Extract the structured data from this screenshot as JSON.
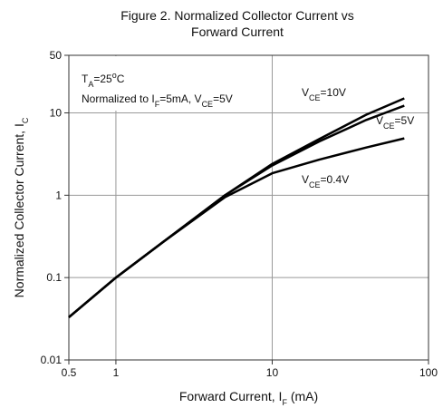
{
  "chart_data": {
    "type": "line",
    "title": [
      "Figure 2. Normalized Collector Current vs",
      "Forward Current"
    ],
    "x_label": [
      "Forward Current, I",
      "F",
      " (mA)"
    ],
    "y_label": [
      "Normalized Collector Current, I",
      "C"
    ],
    "log_x": true,
    "log_y": true,
    "grid": true,
    "xlim": [
      0.5,
      100
    ],
    "xticks": [
      0.5,
      1,
      10,
      100
    ],
    "ylim": [
      0.01,
      50
    ],
    "yticks": [
      0.01,
      0.1,
      1,
      10,
      50
    ],
    "annotations": {
      "ambient": [
        "T",
        "A",
        "=25",
        "o",
        "C"
      ],
      "normalized": [
        "Normalized to I",
        "F",
        "=5mA, V",
        "CE",
        "=5V"
      ]
    },
    "x": [
      0.5,
      1,
      2,
      5,
      10,
      20,
      40,
      70
    ],
    "series": [
      {
        "name": [
          "V",
          "CE",
          "=10V"
        ],
        "color": "#000000",
        "values": [
          0.033,
          0.1,
          0.27,
          1.0,
          2.4,
          4.8,
          9.5,
          15
        ]
      },
      {
        "name": [
          "V",
          "CE",
          "=5V"
        ],
        "color": "#000000",
        "values": [
          0.033,
          0.1,
          0.27,
          1.0,
          2.3,
          4.5,
          8.2,
          12.2
        ]
      },
      {
        "name": [
          "V",
          "CE",
          "=0.4V"
        ],
        "color": "#000000",
        "values": [
          0.033,
          0.1,
          0.27,
          0.95,
          1.85,
          2.7,
          3.8,
          4.9
        ]
      }
    ]
  }
}
